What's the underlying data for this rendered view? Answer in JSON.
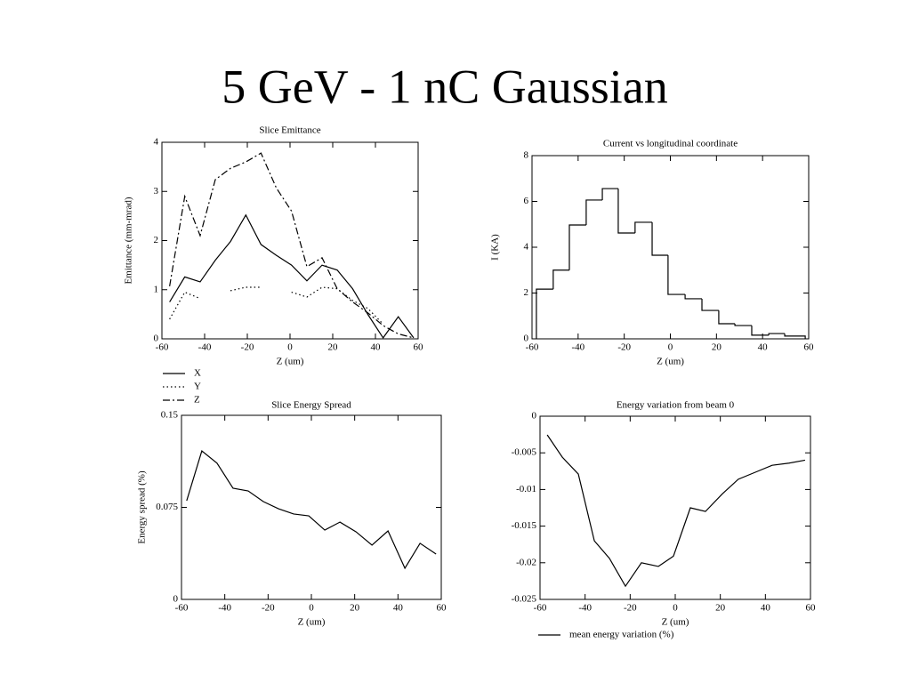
{
  "title": "5 GeV - 1 nC Gaussian",
  "chart_data": [
    {
      "type": "line",
      "title": "Slice Emittance",
      "x_label": "Z (um)",
      "y_label": "Emittance (mm-mrad)",
      "x": [
        -56.4,
        -49.3,
        -42.1,
        -35.0,
        -27.9,
        -20.7,
        -13.6,
        -6.4,
        0.7,
        7.9,
        15.0,
        22.1,
        29.3,
        36.4,
        43.6,
        50.7,
        57.9
      ],
      "series": [
        {
          "name": "X",
          "color": "#000000",
          "dash": "solid",
          "values": [
            0.75,
            1.26,
            1.16,
            1.6,
            1.98,
            2.52,
            1.92,
            1.7,
            1.5,
            1.18,
            1.5,
            1.4,
            1.02,
            0.5,
            0.02,
            0.45,
            0.02
          ]
        },
        {
          "name": "Y",
          "color": "#000000",
          "dash": "dotted",
          "values": [
            0.4,
            0.95,
            0.82,
            null,
            0.98,
            1.05,
            1.05,
            null,
            0.95,
            0.85,
            1.05,
            1.02,
            0.78,
            0.62,
            0.3,
            null,
            0.05
          ]
        },
        {
          "name": "Z",
          "color": "#000000",
          "dash": "dashdot",
          "values": [
            1.07,
            2.9,
            2.1,
            3.24,
            3.47,
            3.6,
            3.78,
            3.07,
            2.6,
            1.47,
            1.65,
            1.02,
            0.75,
            0.53,
            0.27,
            0.1,
            0.02
          ]
        }
      ],
      "xlim": [
        -60,
        60
      ],
      "xticks": [
        -60,
        -40,
        -20,
        0,
        20,
        40,
        60
      ],
      "ylim": [
        0,
        4
      ],
      "yticks": [
        0,
        1,
        2,
        3,
        4
      ],
      "legend": "below"
    },
    {
      "type": "histogram",
      "title": "Current vs longitudinal coordinate",
      "x_label": "Z (um)",
      "y_label": "I (KA)",
      "bins": [
        -58.1,
        -50.8,
        -43.8,
        -36.5,
        -29.5,
        -22.6,
        -15.3,
        -7.9,
        -1.0,
        6.4,
        13.7,
        21.0,
        28.0,
        35.3,
        42.7,
        49.6,
        58.5
      ],
      "values": [
        2.17,
        3.0,
        4.97,
        6.06,
        6.56,
        4.62,
        5.09,
        3.65,
        1.94,
        1.75,
        1.24,
        0.66,
        0.58,
        0.16,
        0.23,
        0.12
      ],
      "color": "#000000",
      "xlim": [
        -60,
        60
      ],
      "xticks": [
        -60,
        -40,
        -20,
        0,
        20,
        40,
        60
      ],
      "ylim": [
        0,
        8
      ],
      "yticks": [
        0,
        2,
        4,
        6,
        8
      ]
    },
    {
      "type": "line",
      "title": "Slice Energy Spread",
      "x_label": "Z (um)",
      "y_label": "Energy spread (%)",
      "x": [
        -57.6,
        -50.6,
        -43.6,
        -36.2,
        -29.2,
        -22.2,
        -15.2,
        -8.2,
        -1.2,
        6.2,
        13.2,
        20.6,
        28.0,
        35.4,
        43.2,
        50.2,
        57.6
      ],
      "series": [
        {
          "color": "#000000",
          "dash": "solid",
          "values": [
            0.0804,
            0.121,
            0.111,
            0.0906,
            0.0884,
            0.0797,
            0.0739,
            0.0696,
            0.0681,
            0.0565,
            0.063,
            0.0551,
            0.0442,
            0.0558,
            0.0254,
            0.0457,
            0.037
          ]
        }
      ],
      "xlim": [
        -60,
        60
      ],
      "xticks": [
        -60,
        -40,
        -20,
        0,
        20,
        40,
        60
      ],
      "ylim": [
        0,
        0.15
      ],
      "yticks": [
        0,
        0.075,
        0.15
      ]
    },
    {
      "type": "line",
      "title": "Energy variation from beam 0",
      "x_label": "Z (um)",
      "x": [
        -56.8,
        -50.1,
        -43.0,
        -35.9,
        -29.2,
        -22.1,
        -15.0,
        -7.5,
        -0.8,
        6.7,
        13.4,
        20.9,
        28.0,
        35.9,
        43.0,
        50.5,
        57.6
      ],
      "series": [
        {
          "name": "mean energy variation (%)",
          "color": "#000000",
          "dash": "solid",
          "values": [
            -0.00255,
            -0.0056,
            -0.0079,
            -0.017,
            -0.0194,
            -0.0232,
            -0.02,
            -0.0205,
            -0.0191,
            -0.0125,
            -0.013,
            -0.0106,
            -0.0086,
            -0.0076,
            -0.0067,
            -0.0064,
            -0.006
          ]
        }
      ],
      "xlim": [
        -60,
        60
      ],
      "xticks": [
        -60,
        -40,
        -20,
        0,
        20,
        40,
        60
      ],
      "ylim": [
        -0.025,
        0
      ],
      "yticks": [
        -0.025,
        -0.02,
        -0.015,
        -0.01,
        -0.005,
        0
      ],
      "legend": "below"
    }
  ]
}
